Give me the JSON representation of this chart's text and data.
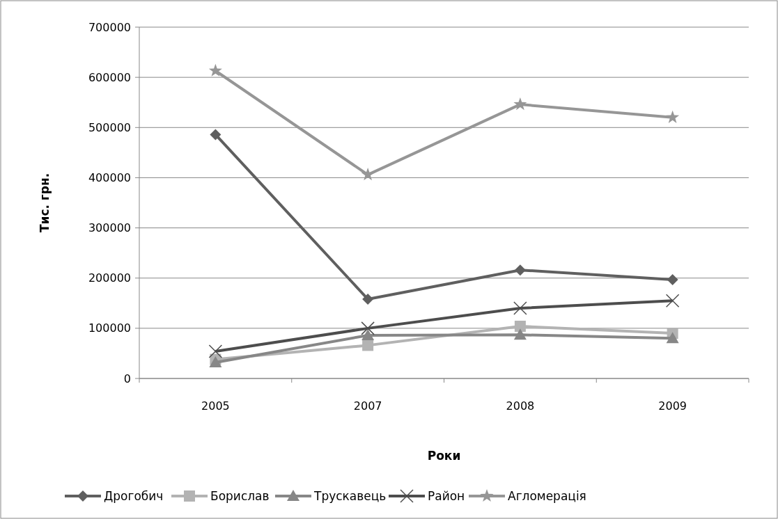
{
  "chart_data": {
    "type": "line",
    "xlabel": "Роки",
    "ylabel": "Тис. грн.",
    "categories": [
      "2005",
      "2007",
      "2008",
      "2009"
    ],
    "ylim": [
      0,
      700000
    ],
    "yticks": [
      0,
      100000,
      200000,
      300000,
      400000,
      500000,
      600000,
      700000
    ],
    "grid": "y",
    "legend": "bottom",
    "line_style": "solid",
    "series": [
      {
        "name": "Дрогобич",
        "color": "#5f5f5f",
        "marker": "diamond",
        "values": [
          486000,
          158000,
          216000,
          197000
        ]
      },
      {
        "name": "Борислав",
        "color": "#b3b3b3",
        "marker": "square",
        "values": [
          38000,
          66000,
          104000,
          90000
        ]
      },
      {
        "name": "Трускавець",
        "color": "#878787",
        "marker": "triangle",
        "values": [
          32000,
          86000,
          87000,
          80000
        ]
      },
      {
        "name": "Район",
        "color": "#4d4d4d",
        "marker": "cross",
        "values": [
          54000,
          100000,
          140000,
          155000
        ]
      },
      {
        "name": "Агломерація",
        "color": "#969696",
        "marker": "star",
        "values": [
          613000,
          406000,
          546000,
          520000
        ]
      }
    ]
  }
}
